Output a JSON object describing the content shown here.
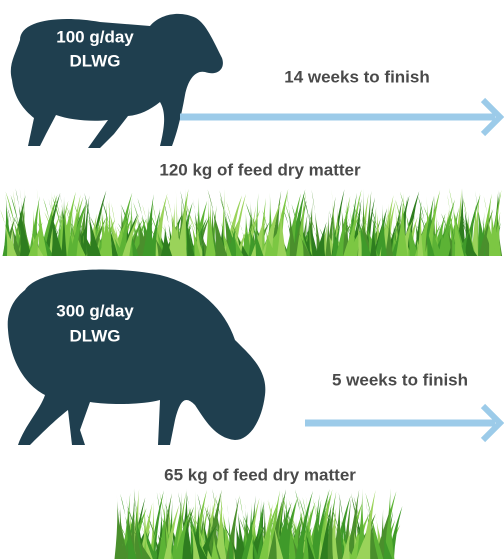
{
  "panels": [
    {
      "lamb_label": [
        "100 g/day",
        "DLWG"
      ],
      "duration": "14 weeks to finish",
      "feed": "120 kg of feed dry matter"
    },
    {
      "lamb_label": [
        "300 g/day",
        "DLWG"
      ],
      "duration": "5 weeks to finish",
      "feed": "65 kg of feed dry matter"
    }
  ]
}
